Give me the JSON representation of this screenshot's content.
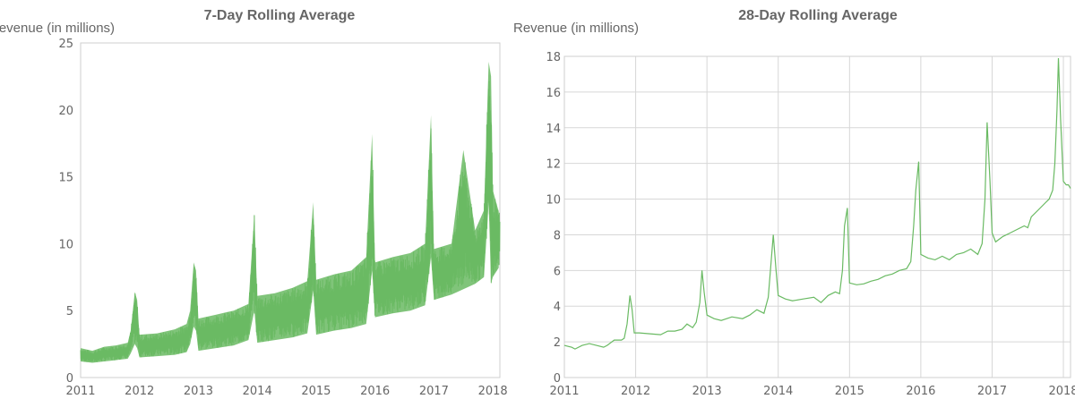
{
  "chart_data": [
    {
      "type": "line",
      "title": "7-Day Rolling Average",
      "ylabel": "Revenue (in millions)",
      "xlabel": "",
      "xlim": [
        2011,
        2018.12
      ],
      "ylim": [
        0,
        25
      ],
      "yticks": [
        0,
        5,
        10,
        15,
        20,
        25
      ],
      "xticks": [
        2011,
        2012,
        2013,
        2014,
        2015,
        2016,
        2017,
        2018
      ],
      "grid": false,
      "color": "#6aba63",
      "series": [
        {
          "x": [
            2011.0,
            2011.2,
            2011.4,
            2011.6,
            2011.8,
            2011.85,
            2011.92,
            2011.96,
            2012.0,
            2012.3,
            2012.6,
            2012.8,
            2012.86,
            2012.92,
            2012.96,
            2013.0,
            2013.3,
            2013.6,
            2013.85,
            2013.95,
            2014.0,
            2014.3,
            2014.6,
            2014.85,
            2014.95,
            2015.0,
            2015.3,
            2015.6,
            2015.85,
            2015.95,
            2016.0,
            2016.3,
            2016.6,
            2016.85,
            2016.95,
            2017.0,
            2017.3,
            2017.5,
            2017.7,
            2017.85,
            2017.93,
            2017.97,
            2018.0,
            2018.1
          ],
          "low": [
            1.2,
            1.1,
            1.2,
            1.3,
            1.4,
            1.8,
            2.5,
            2.2,
            1.5,
            1.6,
            1.7,
            1.9,
            2.5,
            3.8,
            3.5,
            2.0,
            2.2,
            2.4,
            2.8,
            5.0,
            2.6,
            2.8,
            3.0,
            3.3,
            6.5,
            3.2,
            3.5,
            3.7,
            4.0,
            8.0,
            4.5,
            4.8,
            5.0,
            5.4,
            9.0,
            5.8,
            6.2,
            6.6,
            7.0,
            7.5,
            13.0,
            7.0,
            7.5,
            8.2
          ],
          "high": [
            2.2,
            2.0,
            2.3,
            2.4,
            2.6,
            3.5,
            6.4,
            5.8,
            3.2,
            3.3,
            3.6,
            4.0,
            5.0,
            8.6,
            8.0,
            4.4,
            4.7,
            5.0,
            5.5,
            12.2,
            6.1,
            6.3,
            6.7,
            7.2,
            13.1,
            7.3,
            7.7,
            8.0,
            9.0,
            18.2,
            8.6,
            9.0,
            9.3,
            10.0,
            19.6,
            9.6,
            10.0,
            17.0,
            11.0,
            12.5,
            23.6,
            22.5,
            14.0,
            12.4
          ]
        }
      ]
    },
    {
      "type": "line",
      "title": "28-Day Rolling Average",
      "ylabel": "Revenue (in millions)",
      "xlabel": "",
      "xlim": [
        2011,
        2018.1
      ],
      "ylim": [
        0,
        18
      ],
      "yticks": [
        0,
        2,
        4,
        6,
        8,
        10,
        12,
        14,
        16,
        18
      ],
      "xticks": [
        2011,
        2012,
        2013,
        2014,
        2015,
        2016,
        2017,
        2018
      ],
      "grid": true,
      "color": "#6aba63",
      "series": [
        {
          "x": [
            2011.0,
            2011.1,
            2011.15,
            2011.25,
            2011.35,
            2011.45,
            2011.55,
            2011.6,
            2011.7,
            2011.8,
            2011.84,
            2011.88,
            2011.92,
            2011.95,
            2011.98,
            2012.05,
            2012.2,
            2012.35,
            2012.45,
            2012.55,
            2012.65,
            2012.72,
            2012.8,
            2012.85,
            2012.9,
            2012.93,
            2012.96,
            2013.0,
            2013.1,
            2013.2,
            2013.35,
            2013.5,
            2013.6,
            2013.7,
            2013.8,
            2013.86,
            2013.9,
            2013.93,
            2013.97,
            2014.0,
            2014.1,
            2014.2,
            2014.35,
            2014.5,
            2014.6,
            2014.7,
            2014.8,
            2014.86,
            2014.9,
            2014.93,
            2014.97,
            2015.0,
            2015.1,
            2015.2,
            2015.3,
            2015.4,
            2015.5,
            2015.6,
            2015.7,
            2015.8,
            2015.86,
            2015.9,
            2015.93,
            2015.97,
            2016.0,
            2016.1,
            2016.2,
            2016.3,
            2016.4,
            2016.5,
            2016.6,
            2016.7,
            2016.8,
            2016.86,
            2016.9,
            2016.93,
            2016.97,
            2017.0,
            2017.05,
            2017.15,
            2017.25,
            2017.35,
            2017.45,
            2017.5,
            2017.55,
            2017.65,
            2017.75,
            2017.8,
            2017.85,
            2017.88,
            2017.91,
            2017.93,
            2017.96,
            2018.0,
            2018.04,
            2018.07,
            2018.1
          ],
          "y": [
            1.8,
            1.7,
            1.6,
            1.8,
            1.9,
            1.8,
            1.7,
            1.8,
            2.1,
            2.1,
            2.2,
            3.0,
            4.6,
            3.8,
            2.5,
            2.5,
            2.45,
            2.4,
            2.6,
            2.6,
            2.7,
            3.0,
            2.8,
            3.1,
            4.2,
            6.0,
            4.8,
            3.5,
            3.3,
            3.2,
            3.4,
            3.3,
            3.5,
            3.8,
            3.6,
            4.5,
            6.5,
            8.0,
            6.0,
            4.6,
            4.4,
            4.3,
            4.4,
            4.5,
            4.2,
            4.6,
            4.8,
            4.7,
            6.0,
            8.5,
            9.5,
            5.3,
            5.2,
            5.25,
            5.4,
            5.5,
            5.7,
            5.8,
            6.0,
            6.1,
            6.5,
            8.5,
            10.5,
            12.1,
            6.9,
            6.7,
            6.6,
            6.8,
            6.6,
            6.9,
            7.0,
            7.2,
            6.9,
            7.5,
            10.0,
            14.3,
            11.0,
            8.1,
            7.6,
            7.9,
            8.1,
            8.3,
            8.5,
            8.4,
            9.0,
            9.4,
            9.8,
            10.0,
            10.5,
            12.0,
            15.0,
            17.9,
            14.5,
            11.0,
            10.8,
            10.8,
            10.6
          ]
        }
      ]
    }
  ]
}
